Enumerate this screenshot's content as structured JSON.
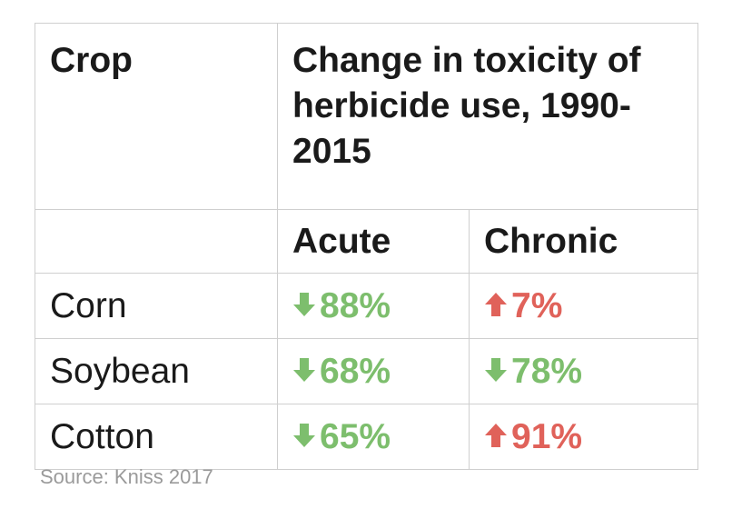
{
  "table": {
    "header": [
      "Crop",
      "Change in toxicity of herbicide use, 1990-2015"
    ],
    "subheader": [
      "Acute",
      "Chronic"
    ],
    "colors": {
      "down": "#7dbe6d",
      "up": "#e0625a"
    },
    "rows": [
      [
        "Corn",
        {
          "text": "88%",
          "direction": "down"
        },
        {
          "text": "7%",
          "direction": "up"
        }
      ],
      [
        "Soybean",
        {
          "text": "68%",
          "direction": "down"
        },
        {
          "text": "78%",
          "direction": "down"
        }
      ],
      [
        "Cotton",
        {
          "text": "65%",
          "direction": "down"
        },
        {
          "text": "91%",
          "direction": "up"
        }
      ]
    ]
  },
  "source": "Source: Kniss 2017"
}
